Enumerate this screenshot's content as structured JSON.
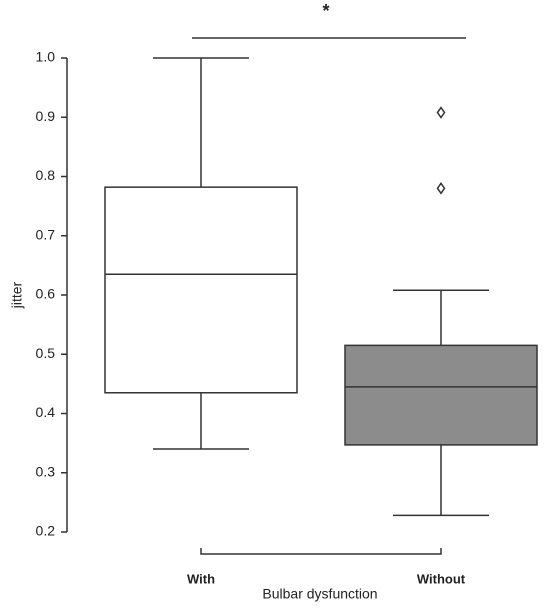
{
  "chart_data": {
    "type": "box",
    "y_label": "jitter",
    "x_label": "Bulbar dysfunction",
    "annotation": "*",
    "categories": [
      "With",
      "Without"
    ],
    "boxes": [
      {
        "min": 0.34,
        "q1": 0.435,
        "median": 0.635,
        "q3": 0.782,
        "max": 1.0,
        "outliers": [],
        "fill": "#ffffff"
      },
      {
        "min": 0.228,
        "q1": 0.347,
        "median": 0.445,
        "q3": 0.515,
        "max": 0.608,
        "outliers": [
          0.78,
          0.908
        ],
        "fill": "#8c8c8c"
      }
    ],
    "ylim": [
      0.2,
      1.0
    ],
    "yticks": [
      0.2,
      0.3,
      0.4,
      0.5,
      0.6,
      0.7,
      0.8,
      0.9,
      {
        "value": 1.0,
        "label": "1.0"
      }
    ],
    "grid": false
  }
}
